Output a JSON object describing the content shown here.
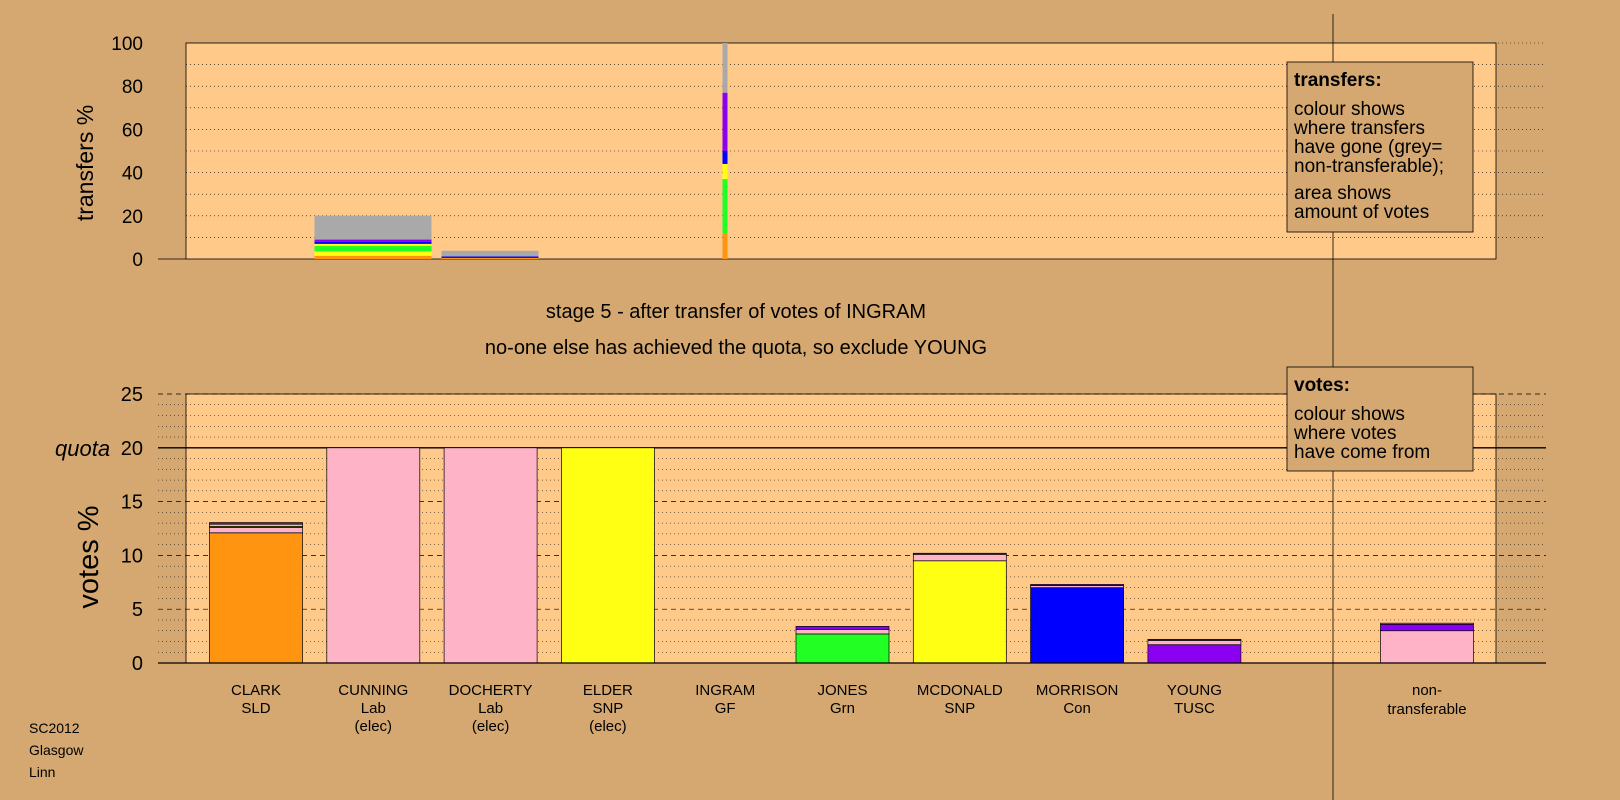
{
  "stage_line": "stage 5 - after transfer of votes of INGRAM",
  "exclusion_line": "no-one else has achieved the quota, so exclude YOUNG",
  "footer": [
    "SC2012",
    "Glasgow",
    "Linn"
  ],
  "colors": {
    "background": "#d4a870",
    "plot_bg": "#ffc98a",
    "SLD": "#ff9410",
    "Lab": "#ffb3c6",
    "SNP": "#ffff14",
    "Grn": "#22ff22",
    "Con": "#0000ff",
    "TUSC": "#8b00f0",
    "GF": "#ffff14",
    "nontransferable": "#a9a9a9"
  },
  "legend_transfers": {
    "title": "transfers:",
    "lines": [
      "colour shows",
      "where transfers",
      "have gone (grey=",
      "non-transferable);",
      "area shows",
      "amount of votes"
    ]
  },
  "legend_votes": {
    "title": "votes:",
    "lines": [
      "colour shows",
      "where votes",
      "have come from"
    ]
  },
  "chart_data": [
    {
      "type": "bar",
      "ylabel": "transfers %",
      "ylim": [
        0,
        100
      ],
      "yticks": [
        0,
        20,
        40,
        60,
        80,
        100
      ],
      "note": "stacked transfer bars; width reflects amount of votes",
      "bars": [
        {
          "candidate": "CUNNING",
          "segments": [
            {
              "party": "SLD",
              "value": 1.5
            },
            {
              "party": "SNP",
              "value": 2
            },
            {
              "party": "Grn",
              "value": 2.5
            },
            {
              "party": "SNP",
              "value": 1
            },
            {
              "party": "Con",
              "value": 1
            },
            {
              "party": "TUSC",
              "value": 1
            },
            {
              "party": "nontransferable",
              "value": 11
            }
          ]
        },
        {
          "candidate": "DOCHERTY",
          "segments": [
            {
              "party": "SLD",
              "value": 0.5
            },
            {
              "party": "Con",
              "value": 0.7
            },
            {
              "party": "nontransferable",
              "value": 2.6
            }
          ]
        },
        {
          "candidate": "INGRAM",
          "segments": [
            {
              "party": "SLD",
              "value": 12
            },
            {
              "party": "Grn",
              "value": 25
            },
            {
              "party": "SNP",
              "value": 7
            },
            {
              "party": "Con",
              "value": 6
            },
            {
              "party": "TUSC",
              "value": 27
            },
            {
              "party": "nontransferable",
              "value": 23
            }
          ]
        }
      ]
    },
    {
      "type": "bar",
      "ylabel": "votes %",
      "ylim": [
        0,
        25
      ],
      "yticks": [
        0,
        5,
        10,
        15,
        20,
        25
      ],
      "quota": 20,
      "quota_label": "quota",
      "categories": [
        {
          "name": "CLARK",
          "party": "SLD",
          "note": ""
        },
        {
          "name": "CUNNING",
          "party": "Lab",
          "note": "(elec)"
        },
        {
          "name": "DOCHERTY",
          "party": "Lab",
          "note": "(elec)"
        },
        {
          "name": "ELDER",
          "party": "SNP",
          "note": "(elec)"
        },
        {
          "name": "INGRAM",
          "party": "GF",
          "note": ""
        },
        {
          "name": "JONES",
          "party": "Grn",
          "note": ""
        },
        {
          "name": "MCDONALD",
          "party": "SNP",
          "note": ""
        },
        {
          "name": "MORRISON",
          "party": "Con",
          "note": ""
        },
        {
          "name": "YOUNG",
          "party": "TUSC",
          "note": ""
        }
      ],
      "nontransferable_label": [
        "non-",
        "transferable"
      ],
      "stacks": [
        [
          {
            "party": "SLD",
            "value": 12.1
          },
          {
            "party": "Lab",
            "value": 0.5
          },
          {
            "party": "SNP",
            "value": 0.1
          },
          {
            "party": "Lab",
            "value": 0.2
          },
          {
            "party": "TUSC",
            "value": 0.15
          }
        ],
        [
          {
            "party": "Lab",
            "value": 20
          }
        ],
        [
          {
            "party": "Lab",
            "value": 20
          }
        ],
        [
          {
            "party": "SNP",
            "value": 20
          }
        ],
        [],
        [
          {
            "party": "Grn",
            "value": 2.7
          },
          {
            "party": "Lab",
            "value": 0.4
          },
          {
            "party": "TUSC",
            "value": 0.3
          }
        ],
        [
          {
            "party": "SNP",
            "value": 9.5
          },
          {
            "party": "Lab",
            "value": 0.6
          },
          {
            "party": "TUSC",
            "value": 0.1
          }
        ],
        [
          {
            "party": "Con",
            "value": 7.0
          },
          {
            "party": "Lab",
            "value": 0.2
          },
          {
            "party": "TUSC",
            "value": 0.1
          }
        ],
        [
          {
            "party": "TUSC",
            "value": 1.7
          },
          {
            "party": "Lab",
            "value": 0.4
          },
          {
            "party": "TUSC",
            "value": 0.1
          }
        ]
      ],
      "nontransferable_stack": [
        {
          "party": "Lab",
          "value": 3.0
        },
        {
          "party": "TUSC",
          "value": 0.6
        },
        {
          "party": "Lab",
          "value": 0.1
        }
      ]
    }
  ]
}
